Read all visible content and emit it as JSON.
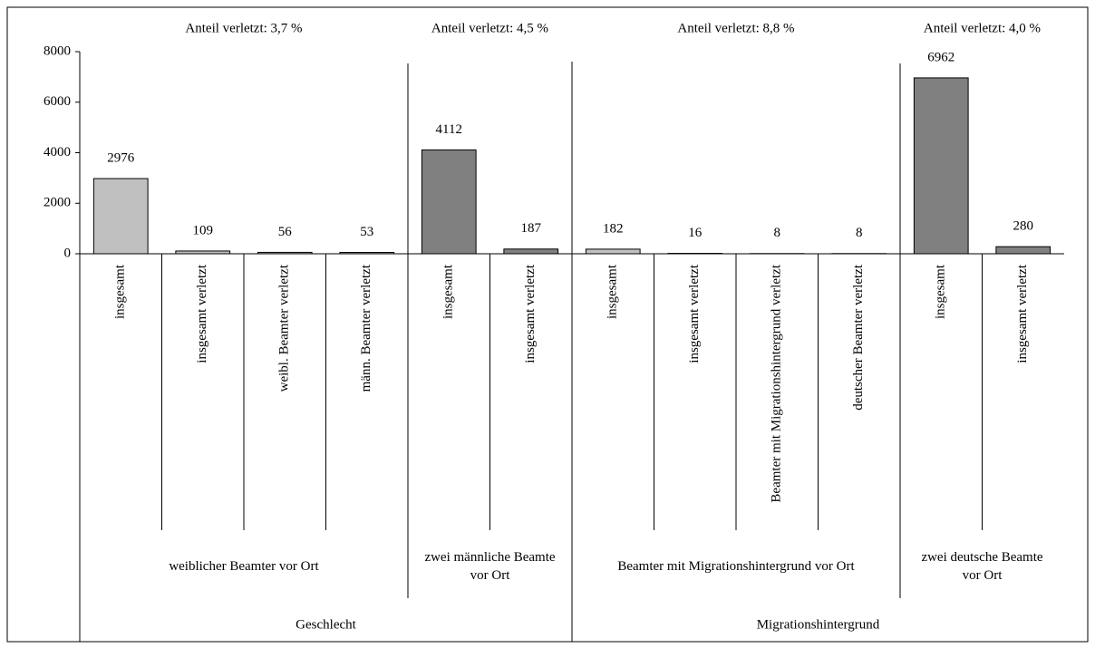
{
  "chart_data": {
    "type": "bar",
    "ylim": [
      0,
      8000
    ],
    "yticks": [
      0,
      2000,
      4000,
      6000,
      8000
    ],
    "sections": [
      {
        "label": "Geschlecht",
        "groups": [
          {
            "label": "weiblicher Beamter vor Ort",
            "annotation": "Anteil verletzt:  3,7 %",
            "color": "#c0c0c0",
            "categories": [
              "insgesamt",
              "insgesamt verletzt",
              "weibl. Beamter verletzt",
              "männ. Beamter verletzt"
            ],
            "values": [
              2976,
              109,
              56,
              53
            ]
          },
          {
            "label": "zwei männliche Beamte vor Ort",
            "annotation": "Anteil verletzt:  4,5 %",
            "color": "#808080",
            "categories": [
              "insgesamt",
              "insgesamt verletzt"
            ],
            "values": [
              4112,
              187
            ]
          }
        ]
      },
      {
        "label": "Migrationshintergrund",
        "groups": [
          {
            "label": "Beamter mit Migrationshintergrund vor Ort",
            "annotation": "Anteil verletzt:  8,8 %",
            "color": "#c0c0c0",
            "categories": [
              "insgesamt",
              "insgesamt verletzt",
              "Beamter mit Migrationshintergrund verletzt",
              "deutscher Beamter verletzt"
            ],
            "values": [
              182,
              16,
              8,
              8
            ]
          },
          {
            "label": "zwei deutsche Beamte vor Ort",
            "annotation": "Anteil verletzt:  4,0 %",
            "color": "#808080",
            "categories": [
              "insgesamt",
              "insgesamt verletzt"
            ],
            "values": [
              6962,
              280
            ]
          }
        ]
      }
    ]
  }
}
